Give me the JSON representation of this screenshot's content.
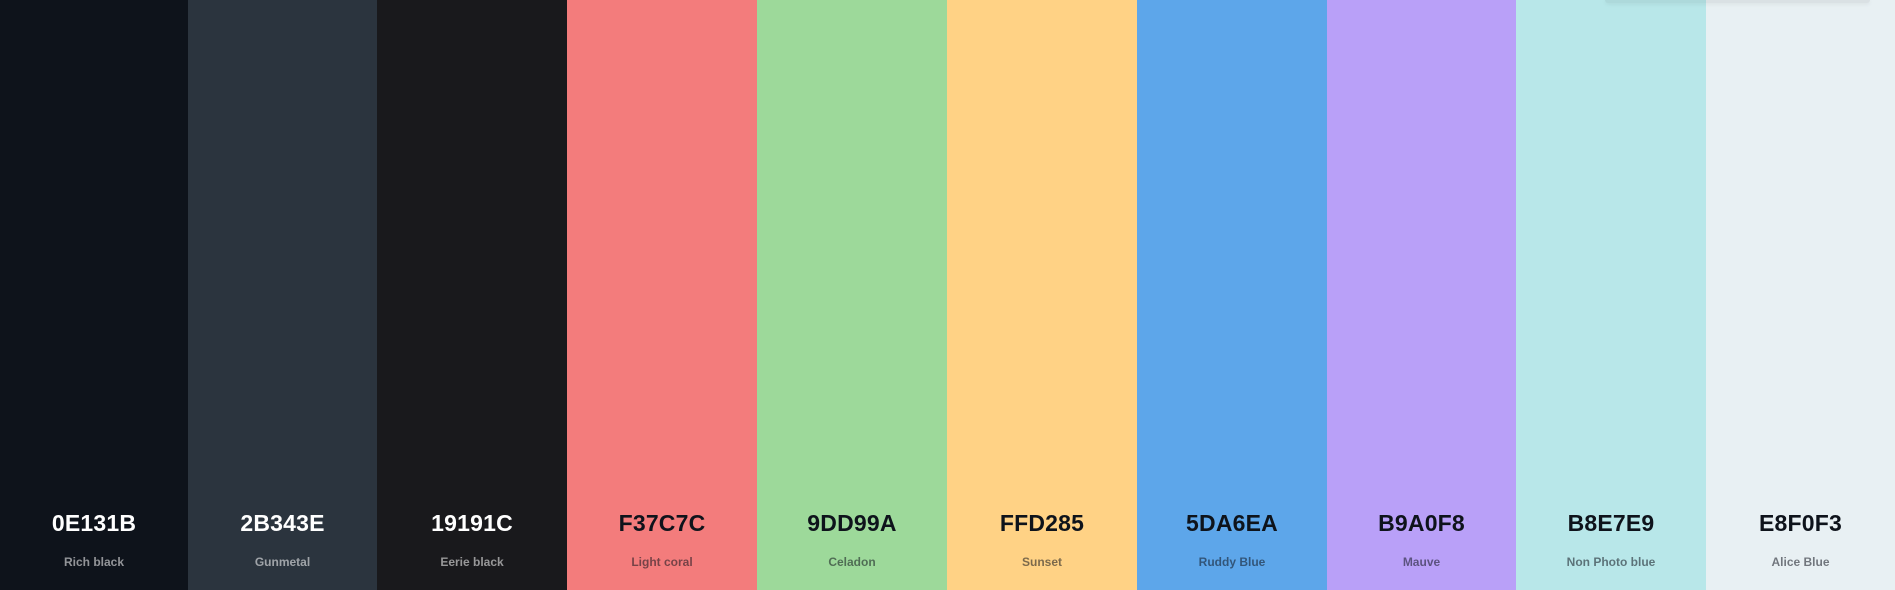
{
  "palette": {
    "swatches": [
      {
        "hex": "0E131B",
        "name": "Rich black",
        "color": "#0E131B",
        "tone": "dark"
      },
      {
        "hex": "2B343E",
        "name": "Gunmetal",
        "color": "#2B343E",
        "tone": "dark"
      },
      {
        "hex": "19191C",
        "name": "Eerie black",
        "color": "#19191C",
        "tone": "dark"
      },
      {
        "hex": "F37C7C",
        "name": "Light coral",
        "color": "#F37C7C",
        "tone": "light"
      },
      {
        "hex": "9DD99A",
        "name": "Celadon",
        "color": "#9DD99A",
        "tone": "light"
      },
      {
        "hex": "FFD285",
        "name": "Sunset",
        "color": "#FFD285",
        "tone": "light"
      },
      {
        "hex": "5DA6EA",
        "name": "Ruddy Blue",
        "color": "#5DA6EA",
        "tone": "light"
      },
      {
        "hex": "B9A0F8",
        "name": "Mauve",
        "color": "#B9A0F8",
        "tone": "light"
      },
      {
        "hex": "B8E7E9",
        "name": "Non Photo blue",
        "color": "#B8E7E9",
        "tone": "light"
      },
      {
        "hex": "E8F0F3",
        "name": "Alice Blue",
        "color": "#E8F0F3",
        "tone": "light"
      }
    ]
  }
}
